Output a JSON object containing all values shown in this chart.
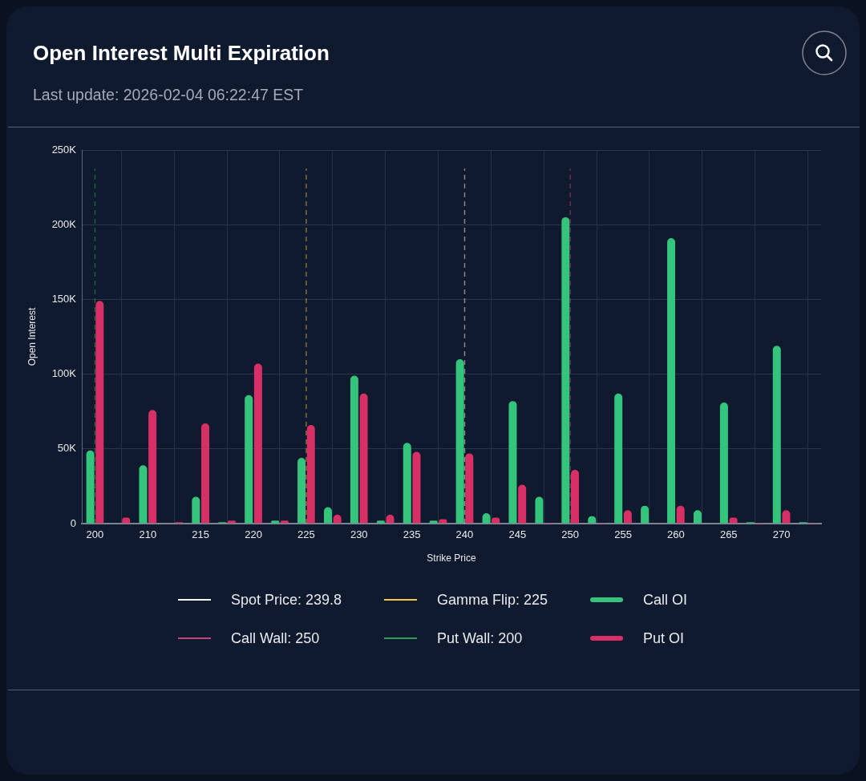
{
  "chart_data": {
    "type": "bar",
    "title": "Open Interest Multi Expiration",
    "subtitle": "Last update: 2026-02-04 06:22:47 EST",
    "xlabel": "Strike Price",
    "ylabel": "Open Interest",
    "categories": [
      "200",
      null,
      "210",
      null,
      "215",
      null,
      "220",
      null,
      "225",
      null,
      "230",
      null,
      "235",
      null,
      "240",
      null,
      "245",
      null,
      "250",
      null,
      "255",
      null,
      "260",
      null,
      "265",
      null,
      "270",
      null
    ],
    "series": [
      {
        "name": "Call OI",
        "color": "#34c47c",
        "values": [
          49000,
          0,
          39000,
          0,
          18000,
          1000,
          86000,
          2000,
          44000,
          11000,
          99000,
          2000,
          54000,
          2000,
          110000,
          7000,
          82000,
          18000,
          205000,
          5000,
          87000,
          12000,
          191000,
          9000,
          81000,
          1000,
          119000,
          1000
        ]
      },
      {
        "name": "Put OI",
        "color": "#d92f67",
        "values": [
          149000,
          4000,
          76000,
          1000,
          67000,
          2000,
          107000,
          2000,
          66000,
          6000,
          87000,
          6000,
          48000,
          3000,
          47000,
          4000,
          26000,
          500,
          36000,
          500,
          9000,
          0,
          12000,
          0,
          4000,
          500,
          9000,
          500
        ]
      }
    ],
    "ylim": [
      0,
      250000
    ],
    "yticks": [
      0,
      {
        "value": 50000,
        "label": "50K"
      },
      {
        "value": 100000,
        "label": "100K"
      },
      {
        "value": 150000,
        "label": "150K"
      },
      {
        "value": 200000,
        "label": "200K"
      },
      {
        "value": 250000,
        "label": "250K"
      }
    ],
    "ref_lines": [
      {
        "axis": "x",
        "value": "240",
        "label": "Spot Price: 239.8",
        "color": "#f4f5f7",
        "line_style": "dashed"
      },
      {
        "axis": "x",
        "value": "250",
        "label": "Call Wall: 250",
        "color": "#c4437a",
        "line_style": "dashed"
      },
      {
        "axis": "x",
        "value": "225",
        "label": "Gamma Flip: 225",
        "color": "#f5c54c",
        "line_style": "dashed"
      },
      {
        "axis": "x",
        "value": "200",
        "label": "Put Wall: 200",
        "color": "#2f9e5a",
        "line_style": "dashed"
      }
    ],
    "grid": true,
    "legend": "bottom"
  }
}
